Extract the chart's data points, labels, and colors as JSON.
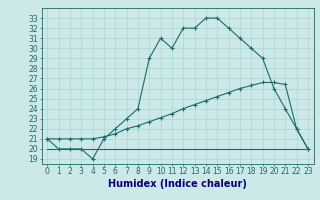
{
  "title": "",
  "xlabel": "Humidex (Indice chaleur)",
  "bg_color": "#cce8e8",
  "line_color": "#1a6b6b",
  "x_ticks": [
    0,
    1,
    2,
    3,
    4,
    5,
    6,
    7,
    8,
    9,
    10,
    11,
    12,
    13,
    14,
    15,
    16,
    17,
    18,
    19,
    20,
    21,
    22,
    23
  ],
  "y_ticks": [
    19,
    20,
    21,
    22,
    23,
    24,
    25,
    26,
    27,
    28,
    29,
    30,
    31,
    32,
    33
  ],
  "ylim": [
    18.5,
    34.0
  ],
  "xlim": [
    -0.5,
    23.5
  ],
  "curve1_x": [
    0,
    1,
    2,
    3,
    4,
    5,
    6,
    7,
    8,
    9,
    10,
    11,
    12,
    13,
    14,
    15,
    16,
    17,
    18,
    19,
    20,
    21,
    22,
    23
  ],
  "curve1_y": [
    21,
    20,
    20,
    20,
    19,
    21,
    22,
    23,
    24,
    29,
    31,
    30,
    32,
    32,
    33,
    33,
    32,
    31,
    30,
    29,
    26,
    24,
    22,
    20
  ],
  "curve2_x": [
    0,
    23
  ],
  "curve2_y": [
    20,
    20
  ],
  "curve3_x": [
    0,
    1,
    2,
    3,
    4,
    5,
    6,
    7,
    8,
    9,
    10,
    11,
    12,
    13,
    14,
    15,
    16,
    17,
    18,
    19,
    20,
    21,
    22,
    23
  ],
  "curve3_y": [
    21,
    21,
    21,
    21,
    21,
    21.2,
    21.5,
    22,
    22.3,
    22.7,
    23.1,
    23.5,
    24,
    24.4,
    24.8,
    25.2,
    25.6,
    26,
    26.3,
    26.6,
    26.6,
    26.4,
    22,
    20
  ],
  "grid_color": "#aad4d4",
  "tick_fontsize": 5.5,
  "xlabel_fontsize": 7
}
